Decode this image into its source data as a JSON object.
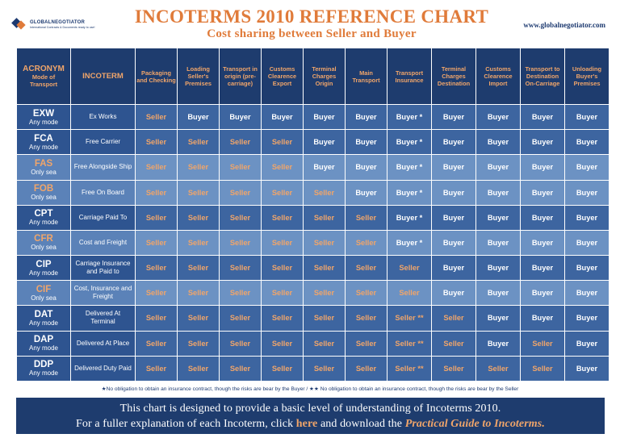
{
  "header": {
    "logo_name": "GLOBALNEGOTIATOR",
    "logo_tagline": "International Contracts & Documents ready to use!",
    "title": "INCOTERMS 2010 REFERENCE CHART",
    "subtitle": "Cost sharing between Seller and Buyer",
    "website": "www.globalnegotiator.com"
  },
  "columns": {
    "acronym": "ACRONYM",
    "acronym_sub": "Mode of Transport",
    "incoterm": "INCOTERM",
    "costs": [
      "Packaging and Checking",
      "Loading Seller's Premises",
      "Transport in origin (pre-carriage)",
      "Customs Clearence Export",
      "Terminal Charges Origin",
      "Main Transport",
      "Transport Insurance",
      "Terminal Charges Destination",
      "Customs Clearence Import",
      "Transport to Destination On-Carriage",
      "Unloading Buyer's Premises"
    ]
  },
  "rows": [
    {
      "code": "EXW",
      "mode": "Any mode",
      "name": "Ex Works",
      "shade": "dark",
      "cells": [
        "Seller",
        "Buyer",
        "Buyer",
        "Buyer",
        "Buyer",
        "Buyer",
        "Buyer *",
        "Buyer",
        "Buyer",
        "Buyer",
        "Buyer"
      ]
    },
    {
      "code": "FCA",
      "mode": "Any mode",
      "name": "Free Carrier",
      "shade": "dark",
      "cells": [
        "Seller",
        "Seller",
        "Seller",
        "Seller",
        "Buyer",
        "Buyer",
        "Buyer *",
        "Buyer",
        "Buyer",
        "Buyer",
        "Buyer"
      ]
    },
    {
      "code": "FAS",
      "mode": "Only sea",
      "name": "Free Alongside Ship",
      "shade": "light",
      "cells": [
        "Seller",
        "Seller",
        "Seller",
        "Seller",
        "Buyer",
        "Buyer",
        "Buyer *",
        "Buyer",
        "Buyer",
        "Buyer",
        "Buyer"
      ]
    },
    {
      "code": "FOB",
      "mode": "Only sea",
      "name": "Free On Board",
      "shade": "light",
      "cells": [
        "Seller",
        "Seller",
        "Seller",
        "Seller",
        "Seller",
        "Buyer",
        "Buyer *",
        "Buyer",
        "Buyer",
        "Buyer",
        "Buyer"
      ]
    },
    {
      "code": "CPT",
      "mode": "Any mode",
      "name": "Carriage Paid To",
      "shade": "dark",
      "cells": [
        "Seller",
        "Seller",
        "Seller",
        "Seller",
        "Seller",
        "Seller",
        "Buyer *",
        "Buyer",
        "Buyer",
        "Buyer",
        "Buyer"
      ]
    },
    {
      "code": "CFR",
      "mode": "Only sea",
      "name": "Cost and Freight",
      "shade": "light",
      "cells": [
        "Seller",
        "Seller",
        "Seller",
        "Seller",
        "Seller",
        "Seller",
        "Buyer *",
        "Buyer",
        "Buyer",
        "Buyer",
        "Buyer"
      ]
    },
    {
      "code": "CIP",
      "mode": "Any mode",
      "name": "Carriage Insurance and Paid to",
      "shade": "dark",
      "cells": [
        "Seller",
        "Seller",
        "Seller",
        "Seller",
        "Seller",
        "Seller",
        "Seller",
        "Buyer",
        "Buyer",
        "Buyer",
        "Buyer"
      ]
    },
    {
      "code": "CIF",
      "mode": "Only sea",
      "name": "Cost, Insurance and Freight",
      "shade": "light",
      "cells": [
        "Seller",
        "Seller",
        "Seller",
        "Seller",
        "Seller",
        "Seller",
        "Seller",
        "Buyer",
        "Buyer",
        "Buyer",
        "Buyer"
      ]
    },
    {
      "code": "DAT",
      "mode": "Any mode",
      "name": "Delivered At Terminal",
      "shade": "dark",
      "cells": [
        "Seller",
        "Seller",
        "Seller",
        "Seller",
        "Seller",
        "Seller",
        "Seller **",
        "Seller",
        "Buyer",
        "Buyer",
        "Buyer"
      ]
    },
    {
      "code": "DAP",
      "mode": "Any mode",
      "name": "Delivered At Place",
      "shade": "dark",
      "cells": [
        "Seller",
        "Seller",
        "Seller",
        "Seller",
        "Seller",
        "Seller",
        "Seller **",
        "Seller",
        "Buyer",
        "Seller",
        "Buyer"
      ]
    },
    {
      "code": "DDP",
      "mode": "Any mode",
      "name": "Delivered Duty Paid",
      "shade": "dark",
      "cells": [
        "Seller",
        "Seller",
        "Seller",
        "Seller",
        "Seller",
        "Seller",
        "Seller **",
        "Seller",
        "Seller",
        "Seller",
        "Buyer"
      ]
    }
  ],
  "footnote": "★No obligation to obtain an insurance contract, though the risks are bear by the Buyer / ★★ No obligation to obtain an insurance contract, though the risks are bear by the Seller",
  "banner": {
    "line1": "This chart is designed to provide a basic level of understanding of Incoterms 2010.",
    "line2_pre": "For a fuller explanation of each Incoterm, click ",
    "line2_link": "here",
    "line2_mid": " and download the ",
    "line2_guide": "Practical Guide to Incoterms."
  },
  "colors": {
    "navy": "#1e3c6e",
    "row_dark": "#3d65a0",
    "row_light": "#6c92c3",
    "orange": "#e07b3a",
    "seller_text": "#f0a56a"
  }
}
